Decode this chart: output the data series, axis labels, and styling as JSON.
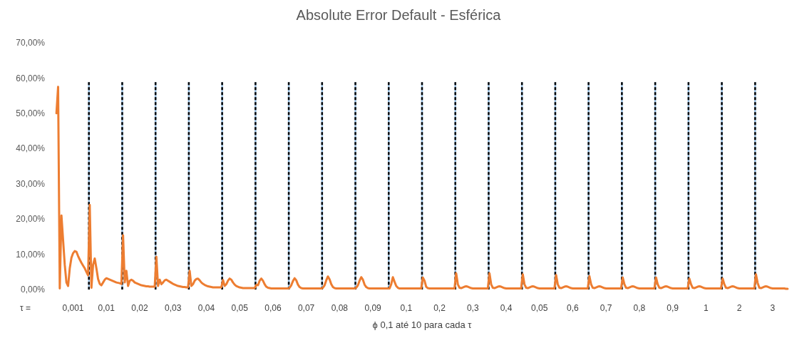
{
  "chart_data": {
    "type": "line",
    "title": "Absolute Error Default - Esférica",
    "xlabel": "ϕ 0,1 até 10 para cada τ",
    "annotations": [
      "τ ="
    ],
    "categories": [
      null,
      null,
      null,
      null,
      null,
      null,
      null,
      null,
      null,
      null,
      "0,001",
      null,
      null,
      null,
      null,
      null,
      null,
      null,
      null,
      null,
      null,
      null,
      null,
      null,
      null,
      null,
      null,
      null,
      null,
      null,
      "0,01",
      null,
      null,
      null,
      null,
      null,
      null,
      null,
      null,
      null,
      null,
      null,
      null,
      null,
      null,
      null,
      null,
      null,
      null,
      null,
      "0,02",
      null,
      null,
      null,
      null,
      null,
      null,
      null,
      null,
      null,
      null,
      null,
      null,
      null,
      null,
      null,
      null,
      null,
      null,
      null,
      "0,03",
      null,
      null,
      null,
      null,
      null,
      null,
      null,
      null,
      null,
      null,
      null,
      null,
      null,
      null,
      null,
      null,
      null,
      null,
      null,
      "0,04",
      null,
      null,
      null,
      null,
      null,
      null,
      null,
      null,
      null,
      null,
      null,
      null,
      null,
      null,
      null,
      null,
      null,
      null,
      null,
      "0,05",
      null,
      null,
      null,
      null,
      null,
      null,
      null,
      null,
      null,
      null,
      null,
      null,
      null,
      null,
      null,
      null,
      null,
      null,
      null,
      "0,06",
      null,
      null,
      null,
      null,
      null,
      null,
      null,
      null,
      null,
      null,
      null,
      null,
      null,
      null,
      null,
      null,
      null,
      null,
      null,
      "0,07",
      null,
      null,
      null,
      null,
      null,
      null,
      null,
      null,
      null,
      null,
      null,
      null,
      null,
      null,
      null,
      null,
      null,
      null,
      null,
      "0,08",
      null,
      null,
      null,
      null,
      null,
      null,
      null,
      null,
      null,
      null,
      null,
      null,
      null,
      null,
      null,
      null,
      null,
      null,
      null,
      "0,09",
      null,
      null,
      null,
      null,
      null,
      null,
      null,
      null,
      null,
      null,
      null,
      null,
      null,
      null,
      null,
      null,
      null,
      null,
      null,
      "0,1",
      null,
      null,
      null,
      null,
      null,
      null,
      null,
      null,
      null,
      null,
      null,
      null,
      null,
      null,
      null,
      null,
      null,
      null,
      null,
      "0,2",
      null,
      null,
      null,
      null,
      null,
      null,
      null,
      null,
      null,
      null,
      null,
      null,
      null,
      null,
      null,
      null,
      null,
      null,
      null,
      "0,3",
      null,
      null,
      null,
      null,
      null,
      null,
      null,
      null,
      null,
      null,
      null,
      null,
      null,
      null,
      null,
      null,
      null,
      null,
      null,
      "0,4",
      null,
      null,
      null,
      null,
      null,
      null,
      null,
      null,
      null,
      null,
      null,
      null,
      null,
      null,
      null,
      null,
      null,
      null,
      null,
      "0,05",
      null,
      null,
      null,
      null,
      null,
      null,
      null,
      null,
      null,
      null,
      null,
      null,
      null,
      null,
      null,
      null,
      null,
      null,
      null,
      "0,6",
      null,
      null,
      null,
      null,
      null,
      null,
      null,
      null,
      null,
      null,
      null,
      null,
      null,
      null,
      null,
      null,
      null,
      null,
      null,
      "0,7",
      null,
      null,
      null,
      null,
      null,
      null,
      null,
      null,
      null,
      null,
      null,
      null,
      null,
      null,
      null,
      null,
      null,
      null,
      null,
      "0,8",
      null,
      null,
      null,
      null,
      null,
      null,
      null,
      null,
      null,
      null,
      null,
      null,
      null,
      null,
      null,
      null,
      null,
      null,
      null,
      "0,9",
      null,
      null,
      null,
      null,
      null,
      null,
      null,
      null,
      null,
      null,
      null,
      null,
      null,
      null,
      null,
      null,
      null,
      null,
      null,
      "1",
      null,
      null,
      null,
      null,
      null,
      null,
      null,
      null,
      null,
      null,
      null,
      null,
      null,
      null,
      null,
      null,
      null,
      null,
      null,
      "2",
      null,
      null,
      null,
      null,
      null,
      null,
      null,
      null,
      null,
      null,
      null,
      null,
      null,
      null,
      null,
      null,
      null,
      null,
      null,
      "3",
      null,
      null,
      null,
      null,
      null,
      null,
      null,
      null,
      null
    ],
    "series": [
      {
        "color": "#ed7d31",
        "values": [
          50,
          57.5,
          0.3,
          21,
          14,
          7,
          2,
          1,
          6,
          9,
          10.3,
          10.9,
          10.7,
          9.5,
          8.5,
          7.6,
          6.8,
          6,
          5,
          4,
          24,
          0.5,
          7,
          8.8,
          6,
          3,
          1.6,
          1.2,
          2,
          2.8,
          3.2,
          3,
          2.8,
          2.6,
          2.4,
          2.2,
          2,
          1.9,
          1.8,
          1.6,
          15.4,
          2,
          5.3,
          1,
          2.5,
          2.8,
          2.5,
          2,
          1.8,
          1.6,
          1.4,
          1.2,
          1.1,
          1,
          0.9,
          0.9,
          0.8,
          0.8,
          0.8,
          0.8,
          9.3,
          1,
          2.8,
          1.5,
          2,
          2.6,
          2.8,
          2.5,
          2.2,
          1.9,
          1.6,
          1.4,
          1.2,
          1,
          0.9,
          0.8,
          0.7,
          0.7,
          0.6,
          0.6,
          5.3,
          1,
          1.5,
          2.5,
          3,
          3.1,
          2.6,
          2,
          1.6,
          1.3,
          1.1,
          0.9,
          0.8,
          0.7,
          0.6,
          0.6,
          0.6,
          0.6,
          0.6,
          0.6,
          2.7,
          1,
          1.5,
          2.5,
          3.1,
          2.8,
          2,
          1.4,
          1,
          0.8,
          0.6,
          0.5,
          0.4,
          0.4,
          0.4,
          0.4,
          0.4,
          0.4,
          0.4,
          0.4,
          1.3,
          1.2,
          2.5,
          3.1,
          2.5,
          1.5,
          0.8,
          0.5,
          0.4,
          0.3,
          0.3,
          0.3,
          0.3,
          0.3,
          0.3,
          0.3,
          0.3,
          0.3,
          0.3,
          0.3,
          0.5,
          1.2,
          2.4,
          3.2,
          2.6,
          1.4,
          0.7,
          0.4,
          0.3,
          0.3,
          0.3,
          0.3,
          0.3,
          0.3,
          0.3,
          0.3,
          0.3,
          0.3,
          0.3,
          0.3,
          0.5,
          1.2,
          2.6,
          3.7,
          2.9,
          1.5,
          0.7,
          0.4,
          0.3,
          0.3,
          0.3,
          0.3,
          0.3,
          0.3,
          0.3,
          0.3,
          0.3,
          0.3,
          0.3,
          0.3,
          0.5,
          1.2,
          2.5,
          3.5,
          2.8,
          1.4,
          0.7,
          0.4,
          0.3,
          0.3,
          0.3,
          0.3,
          0.3,
          0.3,
          0.3,
          0.3,
          0.3,
          0.3,
          0.3,
          0.3,
          0.3,
          1.5,
          3.5,
          2.2,
          1,
          0.5,
          0.3,
          0.3,
          0.3,
          0.3,
          0.3,
          0.3,
          0.3,
          0.3,
          0.3,
          0.3,
          0.3,
          0.3,
          0.3,
          0.3,
          3.4,
          2.5,
          0.8,
          0.4,
          0.3,
          0.3,
          0.3,
          0.3,
          0.3,
          0.3,
          0.3,
          0.3,
          0.3,
          0.3,
          0.3,
          0.3,
          0.3,
          0.3,
          0.3,
          0.3,
          4.6,
          1.5,
          0.5,
          0.4,
          0.6,
          0.8,
          0.9,
          0.8,
          0.6,
          0.4,
          0.3,
          0.3,
          0.3,
          0.3,
          0.3,
          0.3,
          0.3,
          0.3,
          0.3,
          0.3,
          4.6,
          1.5,
          0.5,
          0.4,
          0.6,
          0.8,
          0.9,
          0.8,
          0.6,
          0.4,
          0.3,
          0.3,
          0.3,
          0.3,
          0.3,
          0.3,
          0.3,
          0.3,
          0.3,
          0.3,
          4.3,
          1.5,
          0.5,
          0.4,
          0.6,
          0.8,
          0.9,
          0.8,
          0.6,
          0.4,
          0.3,
          0.3,
          0.3,
          0.3,
          0.3,
          0.3,
          0.3,
          0.3,
          0.3,
          0.3,
          4.1,
          1.5,
          0.5,
          0.4,
          0.6,
          0.8,
          0.9,
          0.8,
          0.6,
          0.4,
          0.3,
          0.3,
          0.3,
          0.3,
          0.3,
          0.3,
          0.3,
          0.3,
          0.3,
          0.3,
          3.8,
          1.5,
          0.5,
          0.4,
          0.6,
          0.8,
          0.9,
          0.8,
          0.6,
          0.4,
          0.3,
          0.3,
          0.3,
          0.3,
          0.3,
          0.3,
          0.3,
          0.3,
          0.3,
          0.3,
          3.4,
          1.5,
          0.5,
          0.4,
          0.6,
          0.8,
          0.9,
          0.8,
          0.6,
          0.4,
          0.3,
          0.3,
          0.3,
          0.3,
          0.3,
          0.3,
          0.3,
          0.3,
          0.3,
          0.3,
          3.4,
          1.5,
          0.5,
          0.4,
          0.6,
          0.8,
          0.9,
          0.8,
          0.6,
          0.4,
          0.3,
          0.3,
          0.3,
          0.3,
          0.3,
          0.3,
          0.3,
          0.3,
          0.3,
          0.3,
          3.1,
          1.5,
          0.5,
          0.4,
          0.6,
          0.8,
          0.9,
          0.8,
          0.6,
          0.4,
          0.3,
          0.3,
          0.3,
          0.3,
          0.3,
          0.3,
          0.3,
          0.3,
          0.3,
          0.3,
          3.1,
          1.5,
          0.5,
          0.4,
          0.6,
          0.8,
          0.9,
          0.8,
          0.6,
          0.4,
          0.3,
          0.3,
          0.3,
          0.3,
          0.3,
          0.3,
          0.3,
          0.3,
          0.3,
          0.3,
          4.3,
          1.9,
          0.5,
          0.4,
          0.6,
          0.8,
          0.9,
          0.8,
          0.6,
          0.4,
          0.3,
          0.3,
          0.3,
          0.3,
          0.3,
          0.3,
          0.3,
          0.3,
          0.2,
          0.2
        ]
      }
    ],
    "ylim": [
      0,
      70
    ],
    "yticks": [
      {
        "value": 0,
        "label": "0,00%"
      },
      {
        "value": 10,
        "label": "10,00%"
      },
      {
        "value": 20,
        "label": "20,00%"
      },
      {
        "value": 30,
        "label": "30,00%"
      },
      {
        "value": 40,
        "label": "40,00%"
      },
      {
        "value": 50,
        "label": "50,00%"
      },
      {
        "value": 60,
        "label": "60,00%"
      },
      {
        "value": 70,
        "label": "70,00%"
      }
    ]
  }
}
